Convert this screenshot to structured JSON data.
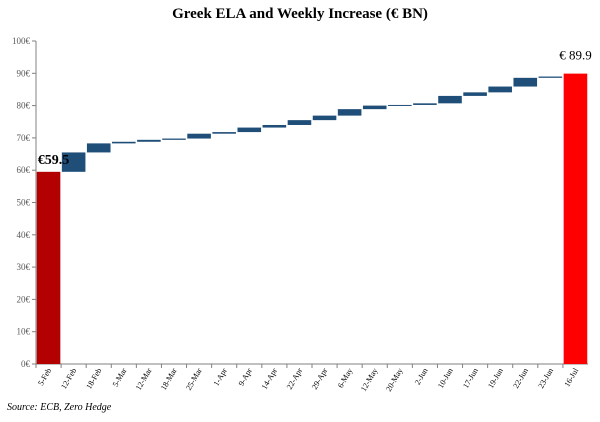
{
  "chart_data": {
    "type": "bar",
    "subtype": "waterfall",
    "title": "Greek ELA and Weekly Increase (€ BN)",
    "source": "Source: ECB,  Zero Hedge",
    "xlabel": "",
    "ylabel": "",
    "ylim": [
      0,
      100
    ],
    "yticks": [
      "0€",
      "10€",
      "20€",
      "30€",
      "40€",
      "50€",
      "60€",
      "70€",
      "80€",
      "90€",
      "100€"
    ],
    "grid": false,
    "legend": "none",
    "categories": [
      "5-Feb",
      "12-Feb",
      "18-Feb",
      "5-Mar",
      "12-Mar",
      "18-Mar",
      "25-Mar",
      "1-Apr",
      "9-Apr",
      "14-Apr",
      "22-Apr",
      "29-Apr",
      "6-May",
      "12-May",
      "20-May",
      "2-Jun",
      "10-Jun",
      "17-Jun",
      "19-Jun",
      "22-Jun",
      "23-Jun",
      "16-Jul"
    ],
    "start": {
      "category": "5-Feb",
      "value": 59.5,
      "label": "€59.5"
    },
    "end": {
      "category": "16-Jul",
      "value": 89.9,
      "label": "€ 89.9"
    },
    "increments": [
      {
        "category": "12-Feb",
        "from": 59.5,
        "to": 65.5
      },
      {
        "category": "18-Feb",
        "from": 65.5,
        "to": 68.3
      },
      {
        "category": "5-Mar",
        "from": 68.3,
        "to": 68.8
      },
      {
        "category": "12-Mar",
        "from": 68.8,
        "to": 69.4
      },
      {
        "category": "18-Mar",
        "from": 69.4,
        "to": 69.8
      },
      {
        "category": "25-Mar",
        "from": 69.8,
        "to": 71.3
      },
      {
        "category": "1-Apr",
        "from": 71.3,
        "to": 71.8
      },
      {
        "category": "9-Apr",
        "from": 71.8,
        "to": 73.2
      },
      {
        "category": "14-Apr",
        "from": 73.2,
        "to": 74.0
      },
      {
        "category": "22-Apr",
        "from": 74.0,
        "to": 75.5
      },
      {
        "category": "29-Apr",
        "from": 75.5,
        "to": 76.9
      },
      {
        "category": "6-May",
        "from": 76.9,
        "to": 78.9
      },
      {
        "category": "12-May",
        "from": 78.9,
        "to": 80.0
      },
      {
        "category": "20-May",
        "from": 80.0,
        "to": 80.2
      },
      {
        "category": "2-Jun",
        "from": 80.2,
        "to": 80.7
      },
      {
        "category": "10-Jun",
        "from": 80.7,
        "to": 83.0
      },
      {
        "category": "17-Jun",
        "from": 83.0,
        "to": 84.1
      },
      {
        "category": "19-Jun",
        "from": 84.1,
        "to": 85.9
      },
      {
        "category": "22-Jun",
        "from": 85.9,
        "to": 88.6
      },
      {
        "category": "23-Jun",
        "from": 88.6,
        "to": 89.0
      }
    ],
    "colors": {
      "endpoint_start": "#b30000",
      "endpoint_end": "#ff0000",
      "increment": "#1f4e79",
      "axis": "#808080",
      "text": "#000000",
      "tick_text": "#595959"
    }
  }
}
